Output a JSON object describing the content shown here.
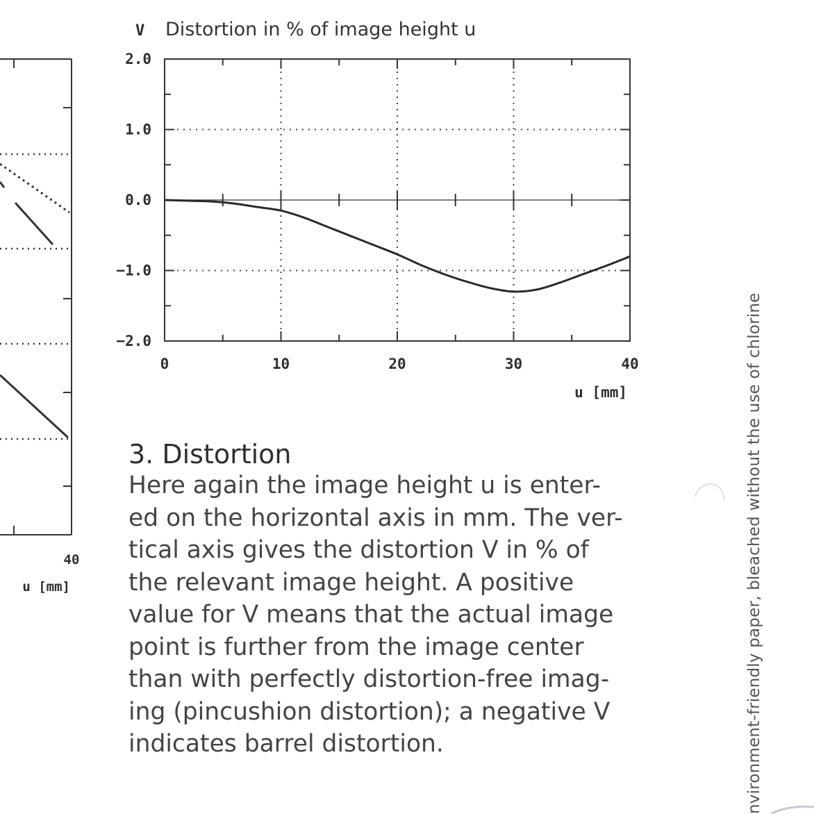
{
  "left_chart_fragment": {
    "x_tick_label": "40",
    "x_axis_label": "u [mm]"
  },
  "chart_data": {
    "type": "line",
    "title": "Distortion in % of image height u",
    "ylabel": "V",
    "xlabel": "u [mm]",
    "xlim": [
      0,
      40
    ],
    "ylim": [
      -2.0,
      2.0
    ],
    "x_ticks": [
      "0",
      "10",
      "20",
      "30",
      "40"
    ],
    "y_ticks": [
      "2.0",
      "1.0",
      "0.0",
      "-1.0",
      "-2.0"
    ],
    "grid": true,
    "series": [
      {
        "x": [
          0,
          2,
          4,
          6,
          8,
          10,
          12,
          14,
          16,
          18,
          20,
          22,
          24,
          26,
          28,
          30,
          32,
          34,
          36,
          38,
          40
        ],
        "values": [
          0.0,
          -0.01,
          -0.02,
          -0.05,
          -0.1,
          -0.15,
          -0.25,
          -0.38,
          -0.51,
          -0.64,
          -0.77,
          -0.92,
          -1.05,
          -1.16,
          -1.25,
          -1.3,
          -1.27,
          -1.17,
          -1.05,
          -0.93,
          -0.8
        ]
      }
    ]
  },
  "article": {
    "heading": "3. Distortion",
    "paragraph": "Here again the image height u is enter-\ned on the horizontal axis in mm. The ver-\ntical axis gives the distortion V in % of\nthe relevant image height. A positive\nvalue for V means that the actual image\npoint is further from the image center\nthan with perfectly distortion-free imag-\ning (pincushion distortion); a negative V\nindicates barrel distortion."
  },
  "side_note": "nvironment-friendly paper, bleached without the use of chlorine"
}
